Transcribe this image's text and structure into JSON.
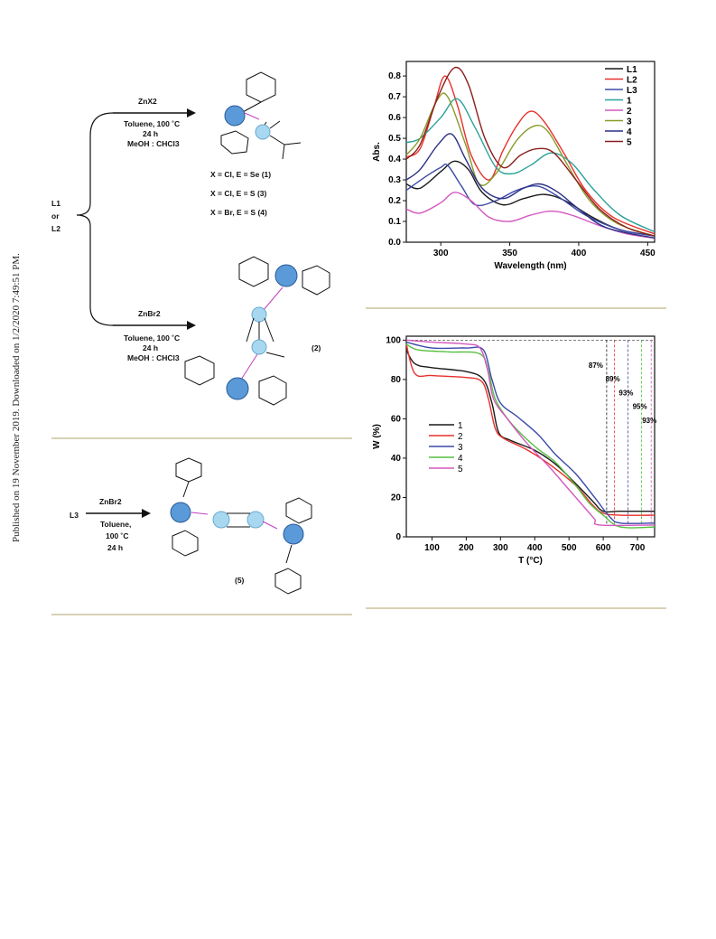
{
  "publication_note": "Published on 19 November 2019. Downloaded on 1/2/2020 7:49:51 PM.",
  "scheme1": {
    "ligands": [
      "L1",
      "or",
      "L2"
    ],
    "upper_reagent": "ZnX2",
    "upper_conditions": [
      "Toluene, 100 ˚C",
      "24 h",
      "MeOH : CHCl3"
    ],
    "upper_product_variants": [
      "X = Cl, E = Se (1)",
      "X = Cl, E = S   (3)",
      "X = Br, E = S   (4)"
    ],
    "lower_reagent": "ZnBr2",
    "lower_conditions": [
      "Toluene, 100 ˚C",
      "24 h",
      "MeOH : CHCl3"
    ],
    "lower_product_label": "(2)"
  },
  "scheme2": {
    "reactant": "L3",
    "reagent": "ZnBr2",
    "conditions": [
      "Toluene,",
      "100 ˚C",
      "24 h"
    ],
    "product_label": "(5)"
  },
  "chart_data": [
    {
      "type": "line",
      "title": "",
      "xlabel": "Wavelength (nm)",
      "ylabel": "Abs.",
      "xlim": [
        275,
        455
      ],
      "ylim": [
        0.0,
        0.87
      ],
      "x_ticks": [
        "300",
        "350",
        "400",
        "450"
      ],
      "y_ticks": [
        "0.0",
        "0.1",
        "0.2",
        "0.3",
        "0.4",
        "0.5",
        "0.6",
        "0.7",
        "0.8"
      ],
      "legend_position": "top-right",
      "series": [
        {
          "name": "L1",
          "color": "#1a1a1a",
          "points": [
            [
              275,
              0.28
            ],
            [
              285,
              0.26
            ],
            [
              300,
              0.34
            ],
            [
              310,
              0.39
            ],
            [
              320,
              0.35
            ],
            [
              330,
              0.24
            ],
            [
              345,
              0.18
            ],
            [
              360,
              0.21
            ],
            [
              375,
              0.23
            ],
            [
              390,
              0.2
            ],
            [
              410,
              0.12
            ],
            [
              430,
              0.06
            ],
            [
              455,
              0.03
            ]
          ]
        },
        {
          "name": "L2",
          "color": "#e8302a",
          "points": [
            [
              275,
              0.41
            ],
            [
              285,
              0.45
            ],
            [
              295,
              0.65
            ],
            [
              303,
              0.8
            ],
            [
              312,
              0.66
            ],
            [
              322,
              0.42
            ],
            [
              335,
              0.3
            ],
            [
              345,
              0.44
            ],
            [
              355,
              0.56
            ],
            [
              365,
              0.63
            ],
            [
              375,
              0.58
            ],
            [
              390,
              0.42
            ],
            [
              405,
              0.25
            ],
            [
              425,
              0.12
            ],
            [
              455,
              0.04
            ]
          ]
        },
        {
          "name": "L3",
          "color": "#3b4aa8",
          "points": [
            [
              275,
              0.25
            ],
            [
              290,
              0.32
            ],
            [
              300,
              0.36
            ],
            [
              305,
              0.37
            ],
            [
              315,
              0.27
            ],
            [
              325,
              0.18
            ],
            [
              340,
              0.2
            ],
            [
              355,
              0.25
            ],
            [
              370,
              0.27
            ],
            [
              385,
              0.22
            ],
            [
              405,
              0.13
            ],
            [
              430,
              0.06
            ],
            [
              455,
              0.03
            ]
          ]
        },
        {
          "name": "1",
          "color": "#2aa19a",
          "points": [
            [
              275,
              0.48
            ],
            [
              285,
              0.5
            ],
            [
              300,
              0.6
            ],
            [
              312,
              0.69
            ],
            [
              325,
              0.55
            ],
            [
              340,
              0.36
            ],
            [
              352,
              0.33
            ],
            [
              365,
              0.37
            ],
            [
              380,
              0.43
            ],
            [
              395,
              0.38
            ],
            [
              410,
              0.26
            ],
            [
              430,
              0.13
            ],
            [
              455,
              0.05
            ]
          ]
        },
        {
          "name": "2",
          "color": "#d458c0",
          "points": [
            [
              275,
              0.16
            ],
            [
              285,
              0.14
            ],
            [
              300,
              0.19
            ],
            [
              310,
              0.24
            ],
            [
              322,
              0.2
            ],
            [
              335,
              0.12
            ],
            [
              350,
              0.1
            ],
            [
              365,
              0.13
            ],
            [
              380,
              0.15
            ],
            [
              395,
              0.13
            ],
            [
              415,
              0.08
            ],
            [
              435,
              0.04
            ],
            [
              455,
              0.02
            ]
          ]
        },
        {
          "name": "3",
          "color": "#8a9a28",
          "points": [
            [
              275,
              0.42
            ],
            [
              285,
              0.5
            ],
            [
              297,
              0.68
            ],
            [
              305,
              0.7
            ],
            [
              318,
              0.47
            ],
            [
              328,
              0.28
            ],
            [
              340,
              0.33
            ],
            [
              355,
              0.49
            ],
            [
              368,
              0.56
            ],
            [
              378,
              0.53
            ],
            [
              392,
              0.37
            ],
            [
              408,
              0.2
            ],
            [
              428,
              0.09
            ],
            [
              455,
              0.03
            ]
          ]
        },
        {
          "name": "4",
          "color": "#2b2f86",
          "points": [
            [
              275,
              0.3
            ],
            [
              285,
              0.35
            ],
            [
              298,
              0.47
            ],
            [
              308,
              0.52
            ],
            [
              318,
              0.4
            ],
            [
              330,
              0.26
            ],
            [
              345,
              0.21
            ],
            [
              360,
              0.26
            ],
            [
              372,
              0.28
            ],
            [
              385,
              0.24
            ],
            [
              400,
              0.16
            ],
            [
              420,
              0.07
            ],
            [
              455,
              0.02
            ]
          ]
        },
        {
          "name": "5",
          "color": "#8b1e1e",
          "points": [
            [
              275,
              0.4
            ],
            [
              285,
              0.47
            ],
            [
              298,
              0.7
            ],
            [
              310,
              0.84
            ],
            [
              320,
              0.76
            ],
            [
              332,
              0.5
            ],
            [
              345,
              0.36
            ],
            [
              358,
              0.42
            ],
            [
              370,
              0.45
            ],
            [
              382,
              0.43
            ],
            [
              398,
              0.3
            ],
            [
              415,
              0.16
            ],
            [
              435,
              0.07
            ],
            [
              455,
              0.03
            ]
          ]
        }
      ]
    },
    {
      "type": "line",
      "title": "",
      "xlabel": "T (°C)",
      "ylabel": "W (%)",
      "xlim": [
        25,
        750
      ],
      "ylim": [
        0,
        102
      ],
      "x_ticks": [
        "100",
        "200",
        "300",
        "400",
        "500",
        "600",
        "700"
      ],
      "y_ticks": [
        "0",
        "20",
        "40",
        "60",
        "80",
        "100"
      ],
      "legend_position": "left-middle",
      "annotations": [
        {
          "text": "87%",
          "x": 610,
          "color": "#1a1a1a"
        },
        {
          "text": "89%",
          "x": 633,
          "color": "#e8302a"
        },
        {
          "text": "93%",
          "x": 672,
          "color": "#3b4aa8"
        },
        {
          "text": "95%",
          "x": 712,
          "color": "#55c040"
        },
        {
          "text": "93%",
          "x": 740,
          "color": "#d458c0"
        }
      ],
      "series": [
        {
          "name": "1",
          "color": "#1a1a1a",
          "points": [
            [
              25,
              95
            ],
            [
              50,
              88
            ],
            [
              100,
              86
            ],
            [
              200,
              84
            ],
            [
              250,
              80
            ],
            [
              275,
              68
            ],
            [
              295,
              53
            ],
            [
              330,
              49
            ],
            [
              400,
              44
            ],
            [
              460,
              37
            ],
            [
              520,
              27
            ],
            [
              570,
              18
            ],
            [
              600,
              13
            ],
            [
              650,
              13
            ],
            [
              750,
              13
            ]
          ]
        },
        {
          "name": "2",
          "color": "#e8302a",
          "points": [
            [
              25,
              98
            ],
            [
              50,
              83
            ],
            [
              100,
              82
            ],
            [
              200,
              81
            ],
            [
              245,
              79
            ],
            [
              265,
              70
            ],
            [
              285,
              55
            ],
            [
              310,
              50
            ],
            [
              380,
              44
            ],
            [
              450,
              36
            ],
            [
              520,
              26
            ],
            [
              570,
              16
            ],
            [
              600,
              12
            ],
            [
              650,
              11
            ],
            [
              750,
              11
            ]
          ]
        },
        {
          "name": "3",
          "color": "#3b4aa8",
          "points": [
            [
              25,
              99
            ],
            [
              100,
              96
            ],
            [
              200,
              96
            ],
            [
              250,
              95
            ],
            [
              275,
              80
            ],
            [
              300,
              68
            ],
            [
              350,
              61
            ],
            [
              410,
              52
            ],
            [
              460,
              42
            ],
            [
              520,
              32
            ],
            [
              575,
              20
            ],
            [
              620,
              10
            ],
            [
              650,
              7
            ],
            [
              750,
              7
            ]
          ]
        },
        {
          "name": "4",
          "color": "#55c040",
          "points": [
            [
              25,
              98
            ],
            [
              60,
              95
            ],
            [
              150,
              94
            ],
            [
              240,
              93
            ],
            [
              265,
              84
            ],
            [
              285,
              70
            ],
            [
              330,
              58
            ],
            [
              400,
              46
            ],
            [
              460,
              38
            ],
            [
              520,
              26
            ],
            [
              560,
              17
            ],
            [
              600,
              11
            ],
            [
              650,
              5
            ],
            [
              750,
              5
            ]
          ]
        },
        {
          "name": "5",
          "color": "#d458c0",
          "points": [
            [
              25,
              100
            ],
            [
              100,
              99
            ],
            [
              200,
              98
            ],
            [
              240,
              96
            ],
            [
              262,
              85
            ],
            [
              280,
              70
            ],
            [
              320,
              60
            ],
            [
              380,
              47
            ],
            [
              440,
              36
            ],
            [
              500,
              24
            ],
            [
              540,
              16
            ],
            [
              575,
              9
            ],
            [
              590,
              6
            ],
            [
              750,
              6
            ]
          ]
        }
      ]
    }
  ]
}
